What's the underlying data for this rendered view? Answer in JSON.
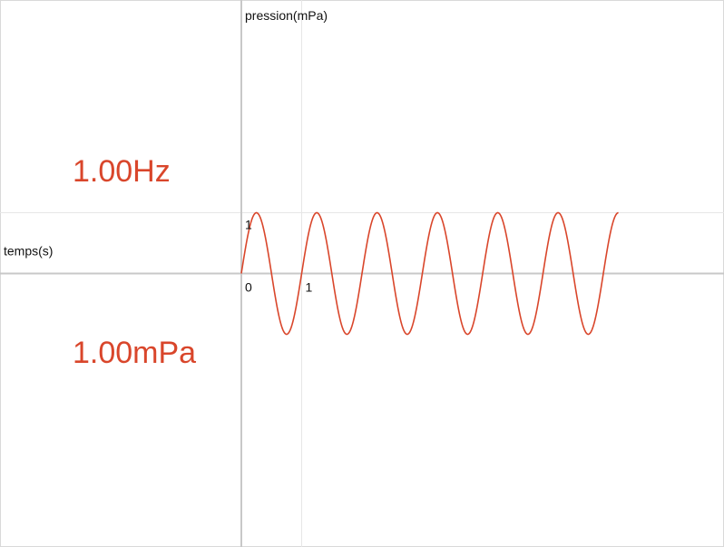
{
  "readouts": {
    "frequency": "1.00Hz",
    "amplitude": "1.00mPa"
  },
  "chart_data": {
    "type": "line",
    "title": "",
    "xlabel": "temps(s)",
    "ylabel": "pression(mPa)",
    "x_tick_labels": [
      "0",
      "1"
    ],
    "y_tick_labels": [
      "1"
    ],
    "xlim": [
      -4,
      8
    ],
    "ylim": [
      -4.5,
      4.5
    ],
    "gridlines": {
      "x": [
        1
      ],
      "y": [
        1
      ]
    },
    "grid": true,
    "legend": "none",
    "series": [
      {
        "name": "",
        "function": "sine",
        "amplitude": 1,
        "frequency": 1,
        "phase": 0,
        "x_range": [
          0,
          6.25
        ],
        "color": "#d9462b"
      }
    ]
  }
}
